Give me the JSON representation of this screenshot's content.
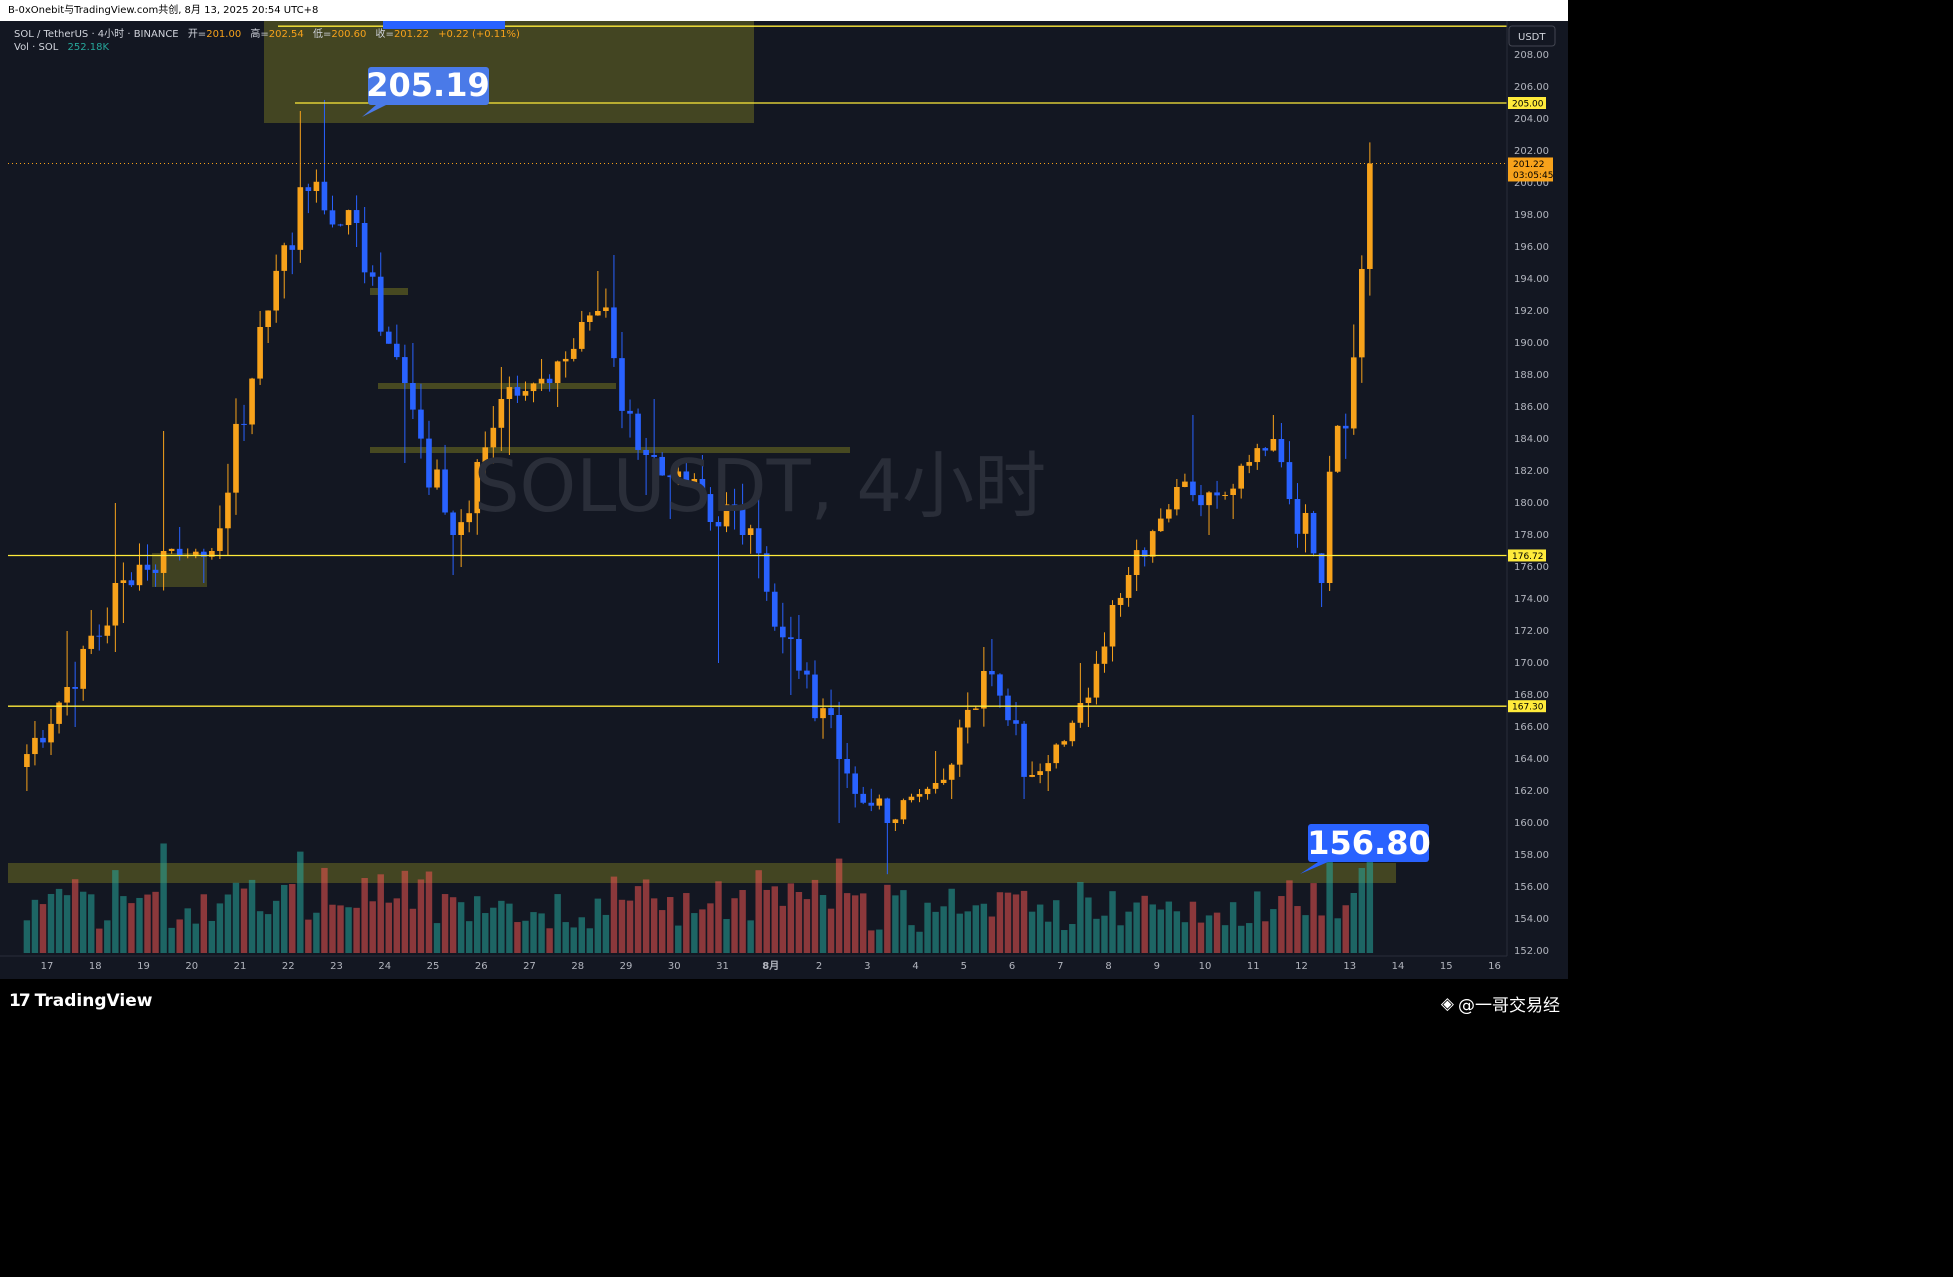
{
  "header": {
    "text": "B-0xOnebit与TradingView.com共创, 8月 13, 2025 20:54 UTC+8"
  },
  "legend": {
    "symbol": "SOL / TetherUS · 4小时 · BINANCE",
    "o_label": "开=",
    "o": "201.00",
    "h_label": "高=",
    "h": "202.54",
    "l_label": "低=",
    "l": "200.60",
    "c_label": "收=",
    "c": "201.22",
    "change": "+0.22 (+0.11%)",
    "vol_label": "Vol · SOL",
    "vol": "252.18K"
  },
  "watermark": "SOLUSDT, 4小时",
  "currency": "USDT",
  "callouts": {
    "high": "205.19",
    "low": "156.80"
  },
  "price_tags": {
    "level_205": "205.00",
    "last_price": "201.22",
    "countdown": "03:05:45",
    "level_176": "176.72",
    "level_167": "167.30"
  },
  "footer": {
    "brand": "TradingView",
    "credit": "@一哥交易经"
  },
  "colors": {
    "up": "#f7a21b",
    "down": "#2962ff",
    "vol_up": "#26a69a",
    "vol_down": "#ef5350",
    "level_line": "#ffeb3b",
    "zone": "#6b6b22",
    "background": "#131722"
  },
  "chart_data": {
    "type": "candlestick",
    "timeframe": "4h",
    "y_range": [
      152,
      210
    ],
    "y_ticks": [
      152,
      154,
      156,
      158,
      160,
      162,
      164,
      166,
      168,
      170,
      172,
      174,
      176,
      178,
      180,
      182,
      184,
      186,
      188,
      190,
      192,
      194,
      196,
      198,
      200,
      202,
      204,
      206,
      208
    ],
    "x_labels": [
      "17",
      "18",
      "19",
      "20",
      "21",
      "22",
      "23",
      "24",
      "25",
      "26",
      "27",
      "28",
      "29",
      "30",
      "31",
      "8月",
      "2",
      "3",
      "4",
      "5",
      "6",
      "7",
      "8",
      "9",
      "10",
      "11",
      "12",
      "13",
      "14",
      "15",
      "16"
    ],
    "horizontal_levels": [
      209.8,
      205.0,
      176.72,
      167.3
    ],
    "key_points": {
      "high": 205.19,
      "low": 156.8,
      "last": 201.22
    },
    "daily_ohlc": [
      {
        "day": "17",
        "o": 163.5,
        "h": 172.0,
        "l": 162.0,
        "c": 168.5
      },
      {
        "day": "18",
        "o": 168.5,
        "h": 180.0,
        "l": 166.0,
        "c": 175.0
      },
      {
        "day": "19",
        "o": 175.0,
        "h": 184.5,
        "l": 172.5,
        "c": 177.0
      },
      {
        "day": "20",
        "o": 177.0,
        "h": 178.5,
        "l": 175.0,
        "c": 177.0
      },
      {
        "day": "21",
        "o": 177.0,
        "h": 192.0,
        "l": 176.5,
        "c": 191.0
      },
      {
        "day": "22",
        "o": 191.0,
        "h": 204.5,
        "l": 190.0,
        "c": 199.5
      },
      {
        "day": "23",
        "o": 199.5,
        "h": 205.19,
        "l": 196.0,
        "c": 197.5
      },
      {
        "day": "24",
        "o": 197.5,
        "h": 198.5,
        "l": 182.5,
        "c": 187.5
      },
      {
        "day": "25",
        "o": 187.5,
        "h": 190.0,
        "l": 175.5,
        "c": 178.0
      },
      {
        "day": "26",
        "o": 178.0,
        "h": 188.5,
        "l": 176.0,
        "c": 186.5
      },
      {
        "day": "27",
        "o": 186.5,
        "h": 189.0,
        "l": 183.0,
        "c": 187.5
      },
      {
        "day": "28",
        "o": 187.5,
        "h": 194.5,
        "l": 186.0,
        "c": 192.0
      },
      {
        "day": "29",
        "o": 192.0,
        "h": 195.5,
        "l": 180.5,
        "c": 183.0
      },
      {
        "day": "30",
        "o": 183.0,
        "h": 186.5,
        "l": 179.0,
        "c": 181.5
      },
      {
        "day": "31",
        "o": 181.5,
        "h": 183.0,
        "l": 170.0,
        "c": 178.0
      },
      {
        "day": "8月",
        "o": 178.0,
        "h": 181.5,
        "l": 168.0,
        "c": 171.5
      },
      {
        "day": "2",
        "o": 171.5,
        "h": 173.0,
        "l": 160.0,
        "c": 164.0
      },
      {
        "day": "3",
        "o": 164.0,
        "h": 165.0,
        "l": 156.8,
        "c": 160.0
      },
      {
        "day": "4",
        "o": 160.0,
        "h": 164.5,
        "l": 159.5,
        "c": 162.5
      },
      {
        "day": "5",
        "o": 162.5,
        "h": 171.0,
        "l": 161.5,
        "c": 169.5
      },
      {
        "day": "6",
        "o": 169.5,
        "h": 171.5,
        "l": 161.5,
        "c": 163.0
      },
      {
        "day": "7",
        "o": 163.0,
        "h": 170.0,
        "l": 162.0,
        "c": 167.5
      },
      {
        "day": "8",
        "o": 167.5,
        "h": 176.0,
        "l": 166.0,
        "c": 175.5
      },
      {
        "day": "9",
        "o": 175.5,
        "h": 181.5,
        "l": 174.5,
        "c": 181.0
      },
      {
        "day": "10",
        "o": 181.0,
        "h": 185.5,
        "l": 178.0,
        "c": 180.5
      },
      {
        "day": "11",
        "o": 180.5,
        "h": 185.5,
        "l": 179.0,
        "c": 184.0
      },
      {
        "day": "12",
        "o": 184.0,
        "h": 185.0,
        "l": 173.5,
        "c": 175.0
      },
      {
        "day": "13",
        "o": 175.0,
        "h": 202.54,
        "l": 174.5,
        "c": 201.22
      }
    ]
  }
}
